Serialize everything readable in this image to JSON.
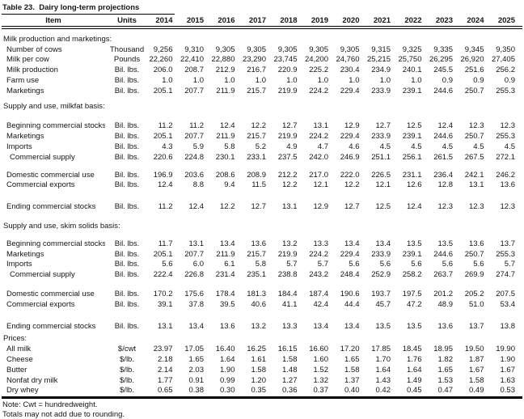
{
  "title": "Table 23.  Dairy long-term projections",
  "columns": {
    "item": "Item",
    "units": "Units",
    "years": [
      "2014",
      "2015",
      "2016",
      "2017",
      "2018",
      "2019",
      "2020",
      "2021",
      "2022",
      "2023",
      "2024",
      "2025"
    ]
  },
  "rows": [
    {
      "kind": "gap",
      "size": "sm"
    },
    {
      "kind": "section",
      "label": "Milk production and marketings:"
    },
    {
      "kind": "data",
      "label": "Number of cows",
      "units": "Thousand",
      "values": [
        "9,256",
        "9,310",
        "9,305",
        "9,305",
        "9,305",
        "9,305",
        "9,305",
        "9,315",
        "9,325",
        "9,335",
        "9,345",
        "9,350"
      ]
    },
    {
      "kind": "data",
      "label": "Milk per cow",
      "units": "Pounds",
      "values": [
        "22,260",
        "22,410",
        "22,880",
        "23,290",
        "23,745",
        "24,200",
        "24,760",
        "25,215",
        "25,750",
        "26,295",
        "26,920",
        "27,405"
      ]
    },
    {
      "kind": "data",
      "label": "Milk production",
      "units": "Bil. lbs.",
      "values": [
        "206.0",
        "208.7",
        "212.9",
        "216.7",
        "220.9",
        "225.2",
        "230.4",
        "234.9",
        "240.1",
        "245.5",
        "251.6",
        "256.2"
      ]
    },
    {
      "kind": "data",
      "label": "Farm use",
      "units": "Bil. lbs.",
      "values": [
        "1.0",
        "1.0",
        "1.0",
        "1.0",
        "1.0",
        "1.0",
        "1.0",
        "1.0",
        "1.0",
        "0.9",
        "0.9",
        "0.9"
      ]
    },
    {
      "kind": "data",
      "label": "Marketings",
      "units": "Bil. lbs.",
      "values": [
        "205.1",
        "207.7",
        "211.9",
        "215.7",
        "219.9",
        "224.2",
        "229.4",
        "233.9",
        "239.1",
        "244.6",
        "250.7",
        "255.3"
      ]
    },
    {
      "kind": "gap",
      "size": "sm"
    },
    {
      "kind": "section",
      "label": "Supply and use, milkfat basis:"
    },
    {
      "kind": "gap",
      "size": "xl"
    },
    {
      "kind": "data",
      "label": "Beginning commercial stocks",
      "units": "Bil. lbs.",
      "values": [
        "11.2",
        "11.2",
        "12.4",
        "12.2",
        "12.7",
        "13.1",
        "12.9",
        "12.7",
        "12.5",
        "12.4",
        "12.3",
        "12.3"
      ]
    },
    {
      "kind": "data",
      "label": "Marketings",
      "units": "Bil. lbs.",
      "values": [
        "205.1",
        "207.7",
        "211.9",
        "215.7",
        "219.9",
        "224.2",
        "229.4",
        "233.9",
        "239.1",
        "244.6",
        "250.7",
        "255.3"
      ]
    },
    {
      "kind": "data",
      "label": "Imports",
      "units": "Bil. lbs.",
      "values": [
        "4.3",
        "5.9",
        "5.8",
        "5.2",
        "4.9",
        "4.7",
        "4.6",
        "4.5",
        "4.5",
        "4.5",
        "4.5",
        "4.5"
      ]
    },
    {
      "kind": "data",
      "label": "Commercial supply",
      "indent": true,
      "units": "Bil. lbs.",
      "values": [
        "220.6",
        "224.8",
        "230.1",
        "233.1",
        "237.5",
        "242.0",
        "246.9",
        "251.1",
        "256.1",
        "261.5",
        "267.5",
        "272.1"
      ]
    },
    {
      "kind": "gap",
      "size": "md"
    },
    {
      "kind": "data",
      "label": "Domestic commercial use",
      "units": "Bil. lbs.",
      "values": [
        "196.9",
        "203.6",
        "208.6",
        "208.9",
        "212.2",
        "217.0",
        "222.0",
        "226.5",
        "231.1",
        "236.4",
        "242.1",
        "246.2"
      ]
    },
    {
      "kind": "data",
      "label": "Commercial exports",
      "units": "Bil. lbs.",
      "values": [
        "12.4",
        "8.8",
        "9.4",
        "11.5",
        "12.2",
        "12.1",
        "12.2",
        "12.1",
        "12.6",
        "12.8",
        "13.1",
        "13.6"
      ]
    },
    {
      "kind": "gap",
      "size": "xxl"
    },
    {
      "kind": "data",
      "label": "Ending commercial stocks",
      "units": "Bil. lbs.",
      "values": [
        "11.2",
        "12.4",
        "12.2",
        "12.7",
        "13.1",
        "12.9",
        "12.7",
        "12.5",
        "12.4",
        "12.3",
        "12.3",
        "12.3"
      ]
    },
    {
      "kind": "gap",
      "size": "lg"
    },
    {
      "kind": "section",
      "label": "Supply and use, skim solids basis:"
    },
    {
      "kind": "gap",
      "size": "md"
    },
    {
      "kind": "data",
      "label": "Beginning commercial stocks",
      "units": "Bil. lbs.",
      "values": [
        "11.7",
        "13.1",
        "13.4",
        "13.6",
        "13.2",
        "13.3",
        "13.4",
        "13.4",
        "13.5",
        "13.5",
        "13.6",
        "13.7"
      ]
    },
    {
      "kind": "data",
      "label": "Marketings",
      "units": "Bil. lbs.",
      "values": [
        "205.1",
        "207.7",
        "211.9",
        "215.7",
        "219.9",
        "224.2",
        "229.4",
        "233.9",
        "239.1",
        "244.6",
        "250.7",
        "255.3"
      ]
    },
    {
      "kind": "data",
      "label": "Imports",
      "units": "Bil. lbs.",
      "values": [
        "5.6",
        "6.0",
        "6.1",
        "5.8",
        "5.7",
        "5.7",
        "5.6",
        "5.6",
        "5.6",
        "5.6",
        "5.6",
        "5.7"
      ]
    },
    {
      "kind": "data",
      "label": "Commercial supply",
      "indent": true,
      "units": "Bil. lbs.",
      "values": [
        "222.4",
        "226.8",
        "231.4",
        "235.1",
        "238.8",
        "243.2",
        "248.4",
        "252.9",
        "258.2",
        "263.7",
        "269.9",
        "274.7"
      ]
    },
    {
      "kind": "gap",
      "size": "lg"
    },
    {
      "kind": "data",
      "label": "Domestic commercial use",
      "units": "Bil. lbs.",
      "values": [
        "170.2",
        "175.6",
        "178.4",
        "181.3",
        "184.4",
        "187.4",
        "190.6",
        "193.7",
        "197.5",
        "201.2",
        "205.2",
        "207.5"
      ]
    },
    {
      "kind": "data",
      "label": "Commercial exports",
      "units": "Bil. lbs.",
      "values": [
        "39.1",
        "37.8",
        "39.5",
        "40.6",
        "41.1",
        "42.4",
        "44.4",
        "45.7",
        "47.2",
        "48.9",
        "51.0",
        "53.4"
      ]
    },
    {
      "kind": "gap",
      "size": "xxl"
    },
    {
      "kind": "data",
      "label": "Ending commercial stocks",
      "units": "Bil. lbs.",
      "values": [
        "13.1",
        "13.4",
        "13.6",
        "13.2",
        "13.3",
        "13.4",
        "13.4",
        "13.5",
        "13.5",
        "13.6",
        "13.7",
        "13.8"
      ]
    },
    {
      "kind": "gap",
      "size": "xs"
    },
    {
      "kind": "section",
      "label": "Prices:"
    },
    {
      "kind": "data",
      "label": "All milk",
      "units": "$/cwt",
      "values": [
        "23.97",
        "17.05",
        "16.40",
        "16.25",
        "16.15",
        "16.60",
        "17.20",
        "17.85",
        "18.45",
        "18.95",
        "19.50",
        "19.90"
      ]
    },
    {
      "kind": "data",
      "label": "Cheese",
      "units": "$/lb.",
      "values": [
        "2.18",
        "1.65",
        "1.64",
        "1.61",
        "1.58",
        "1.60",
        "1.65",
        "1.70",
        "1.76",
        "1.82",
        "1.87",
        "1.90"
      ]
    },
    {
      "kind": "data",
      "label": "Butter",
      "units": "$/lb.",
      "values": [
        "2.14",
        "2.03",
        "1.90",
        "1.58",
        "1.48",
        "1.52",
        "1.58",
        "1.64",
        "1.64",
        "1.65",
        "1.67",
        "1.67"
      ]
    },
    {
      "kind": "data",
      "label": "Nonfat dry milk",
      "units": "$/lb.",
      "values": [
        "1.77",
        "0.91",
        "0.99",
        "1.20",
        "1.27",
        "1.32",
        "1.37",
        "1.43",
        "1.49",
        "1.53",
        "1.58",
        "1.63"
      ]
    },
    {
      "kind": "data",
      "label": "Dry whey",
      "units": "$/lb.",
      "values": [
        "0.65",
        "0.38",
        "0.30",
        "0.35",
        "0.36",
        "0.37",
        "0.40",
        "0.42",
        "0.45",
        "0.47",
        "0.49",
        "0.53"
      ]
    }
  ],
  "notes": [
    "Note: Cwt = hundredweight.",
    "Totals may not add due to rounding."
  ]
}
